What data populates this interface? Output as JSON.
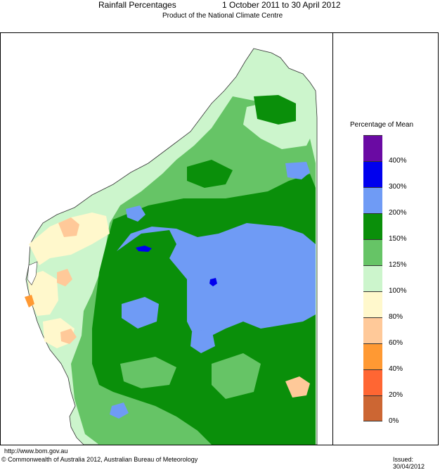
{
  "header": {
    "title": "Rainfall Percentages",
    "period": "1 October 2011 to 30 April 2012",
    "subtitle": "Product of the National Climate Centre"
  },
  "legend": {
    "title": "Percentage of Mean",
    "bands": [
      {
        "label": "400%",
        "color": "#6a0aa3"
      },
      {
        "label": "300%",
        "color": "#0000ee"
      },
      {
        "label": "200%",
        "color": "#6f9bf5"
      },
      {
        "label": "150%",
        "color": "#0a8f0a"
      },
      {
        "label": "125%",
        "color": "#66c466"
      },
      {
        "label": "100%",
        "color": "#ccf5cc"
      },
      {
        "label": "80%",
        "color": "#fff8cc"
      },
      {
        "label": "60%",
        "color": "#ffc999"
      },
      {
        "label": "40%",
        "color": "#ff9933"
      },
      {
        "label": "20%",
        "color": "#ff6633"
      },
      {
        "label": "0%",
        "color": "#cc6633"
      }
    ]
  },
  "footer": {
    "url": "http://www.bom.gov.au",
    "copyright": "© Commonwealth of Australia 2012, Australian Bureau of Meteorology",
    "issued": "Issued: 30/04/2012"
  }
}
